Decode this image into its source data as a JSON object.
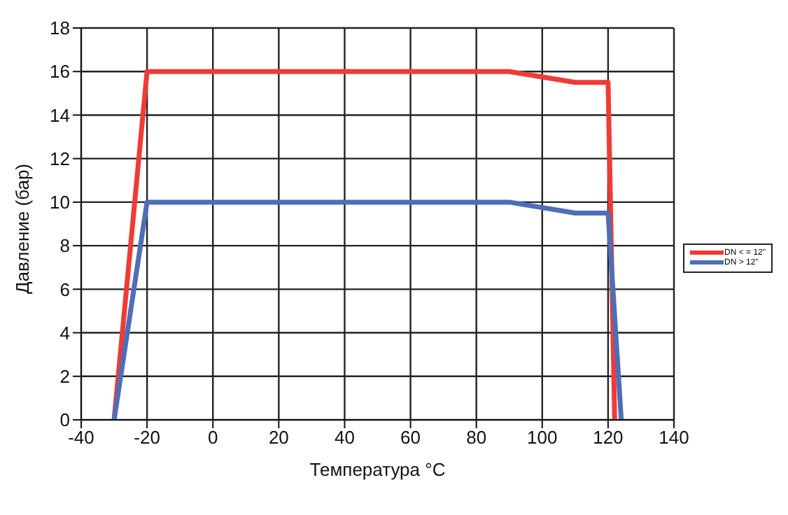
{
  "chart_data": {
    "type": "line",
    "xlabel": "Температура °C",
    "ylabel": "Давление (бар)",
    "xlim": [
      -40,
      140
    ],
    "xticks": [
      -40,
      -20,
      0,
      20,
      40,
      60,
      80,
      100,
      120,
      140
    ],
    "ylim": [
      0,
      18
    ],
    "yticks": [
      0,
      2,
      4,
      6,
      8,
      10,
      12,
      14,
      16,
      18
    ],
    "grid": true,
    "legend": "right",
    "marker": "none",
    "line_style": "solid",
    "series": [
      {
        "name": "DN < = 12\"",
        "color": "#ef3b36",
        "x": [
          -30,
          -20,
          90,
          110,
          120,
          122
        ],
        "values": [
          0,
          16,
          16,
          15.5,
          15.5,
          0
        ]
      },
      {
        "name": "DN > 12\"",
        "color": "#4f6eb8",
        "x": [
          -30,
          -20,
          90,
          110,
          120,
          124
        ],
        "values": [
          0,
          10,
          10,
          9.5,
          9.5,
          0
        ]
      }
    ]
  }
}
